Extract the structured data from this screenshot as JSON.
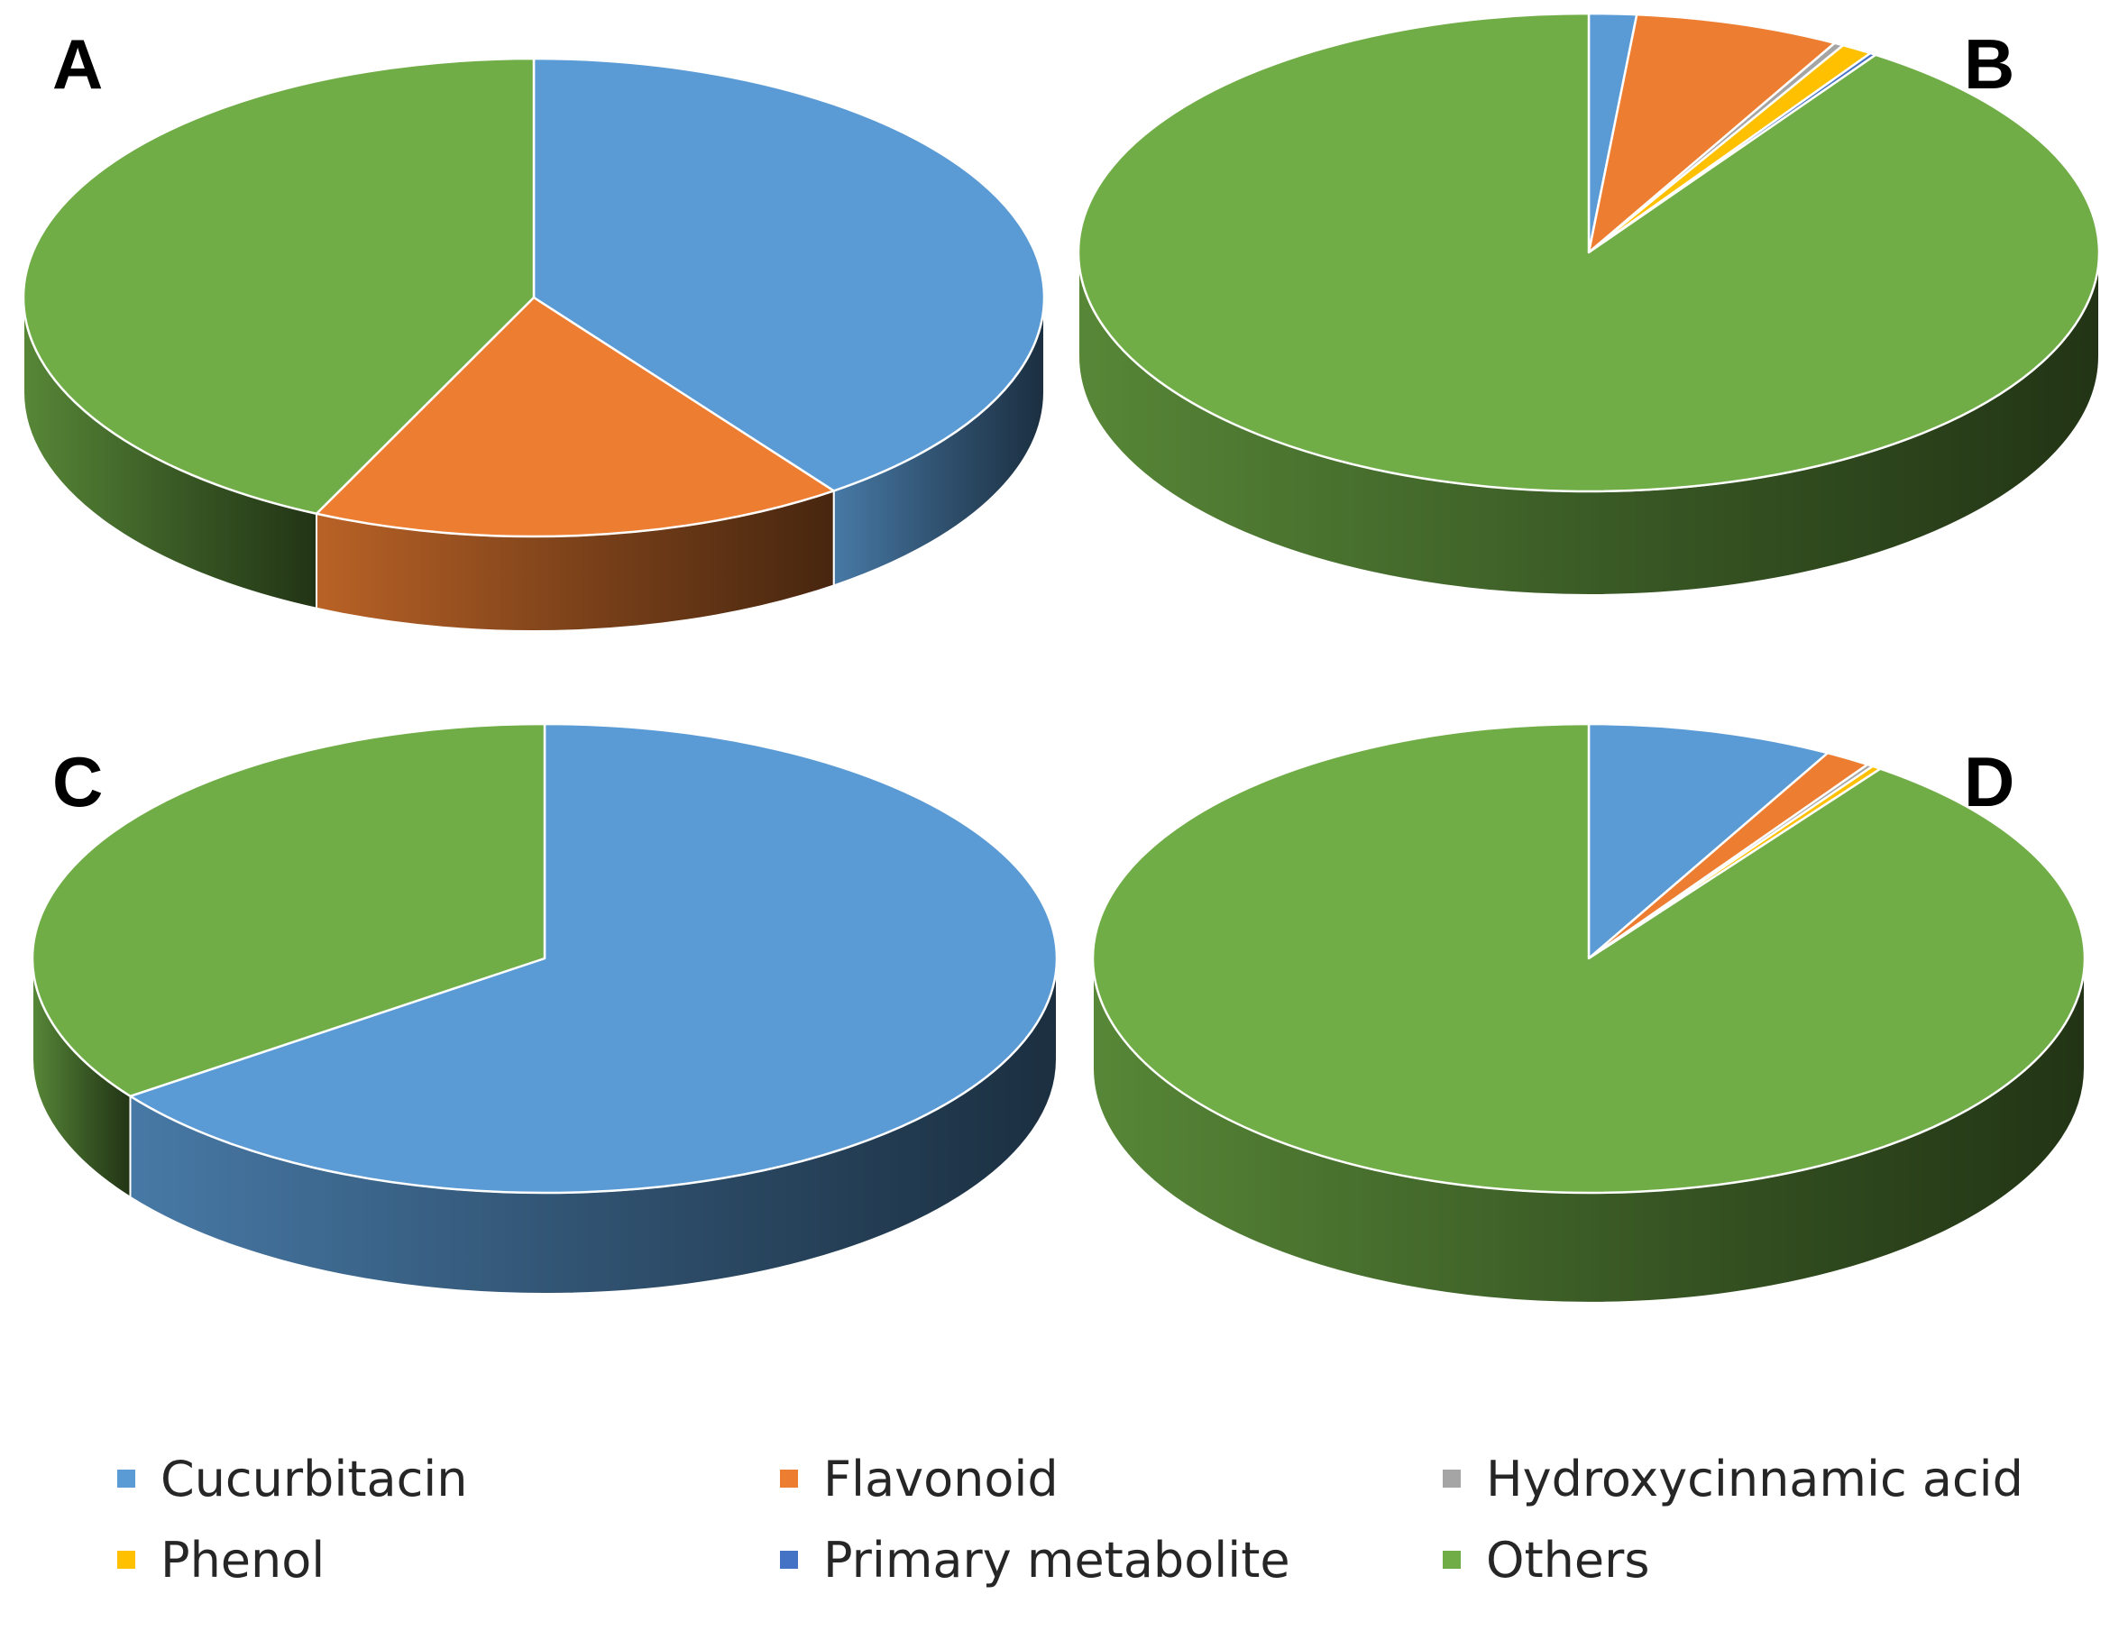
{
  "panel_labels": [
    "A",
    "B",
    "C",
    "D"
  ],
  "categories": [
    "Cucurbitacin",
    "Flavonoid",
    "Hydroxycinnamic acid",
    "Phenol",
    "Primary metabolite",
    "Others"
  ],
  "colors": {
    "Cucurbitacin": "#5B9BD5",
    "Flavonoid": "#ED7D31",
    "Hydroxycinnamic acid": "#A5A5A5",
    "Phenol": "#FFC000",
    "Primary metabolite": "#4472C4",
    "Others": "#70AD47"
  },
  "legend": {
    "items": [
      {
        "label": "Cucurbitacin",
        "color": "#5B9BD5"
      },
      {
        "label": "Flavonoid",
        "color": "#ED7D31"
      },
      {
        "label": "Hydroxycinnamic acid",
        "color": "#A5A5A5"
      },
      {
        "label": "Phenol",
        "color": "#FFC000"
      },
      {
        "label": "Primary metabolite",
        "color": "#4472C4"
      },
      {
        "label": "Others",
        "color": "#70AD47"
      }
    ]
  },
  "chart_data": [
    {
      "type": "pie",
      "style": "3d",
      "panel": "A",
      "categories": [
        "Cucurbitacin",
        "Flavonoid",
        "Hydroxycinnamic acid",
        "Phenol",
        "Primary metabolite",
        "Others"
      ],
      "values": [
        40,
        17,
        0,
        0,
        0,
        43
      ]
    },
    {
      "type": "pie",
      "style": "3d",
      "panel": "B",
      "categories": [
        "Cucurbitacin",
        "Flavonoid",
        "Hydroxycinnamic acid",
        "Phenol",
        "Primary metabolite",
        "Others"
      ],
      "values": [
        1.5,
        6.5,
        0.3,
        1.0,
        0.2,
        90.5
      ]
    },
    {
      "type": "pie",
      "style": "3d",
      "panel": "C",
      "categories": [
        "Cucurbitacin",
        "Flavonoid",
        "Hydroxycinnamic acid",
        "Phenol",
        "Primary metabolite",
        "Others"
      ],
      "values": [
        65,
        0,
        0,
        0,
        0,
        35
      ]
    },
    {
      "type": "pie",
      "style": "3d",
      "panel": "D",
      "categories": [
        "Cucurbitacin",
        "Flavonoid",
        "Hydroxycinnamic acid",
        "Phenol",
        "Primary metabolite",
        "Others"
      ],
      "values": [
        8,
        1.5,
        0.2,
        0.3,
        0,
        90
      ]
    }
  ]
}
